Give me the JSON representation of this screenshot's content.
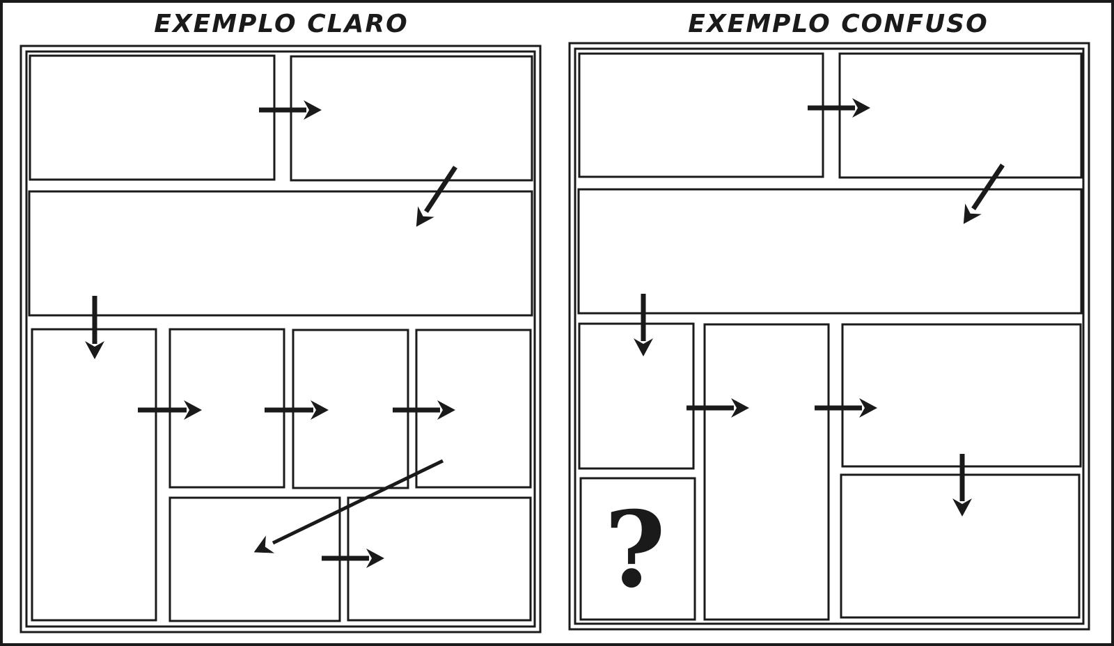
{
  "diagram": {
    "left_example": {
      "title": "EXEMPLO CLARO"
    },
    "right_example": {
      "title": "EXEMPLO CONFUSO",
      "unclear_symbol": "?"
    },
    "colors": {
      "ink": "#1a1a1a",
      "paper": "#ffffff"
    }
  }
}
